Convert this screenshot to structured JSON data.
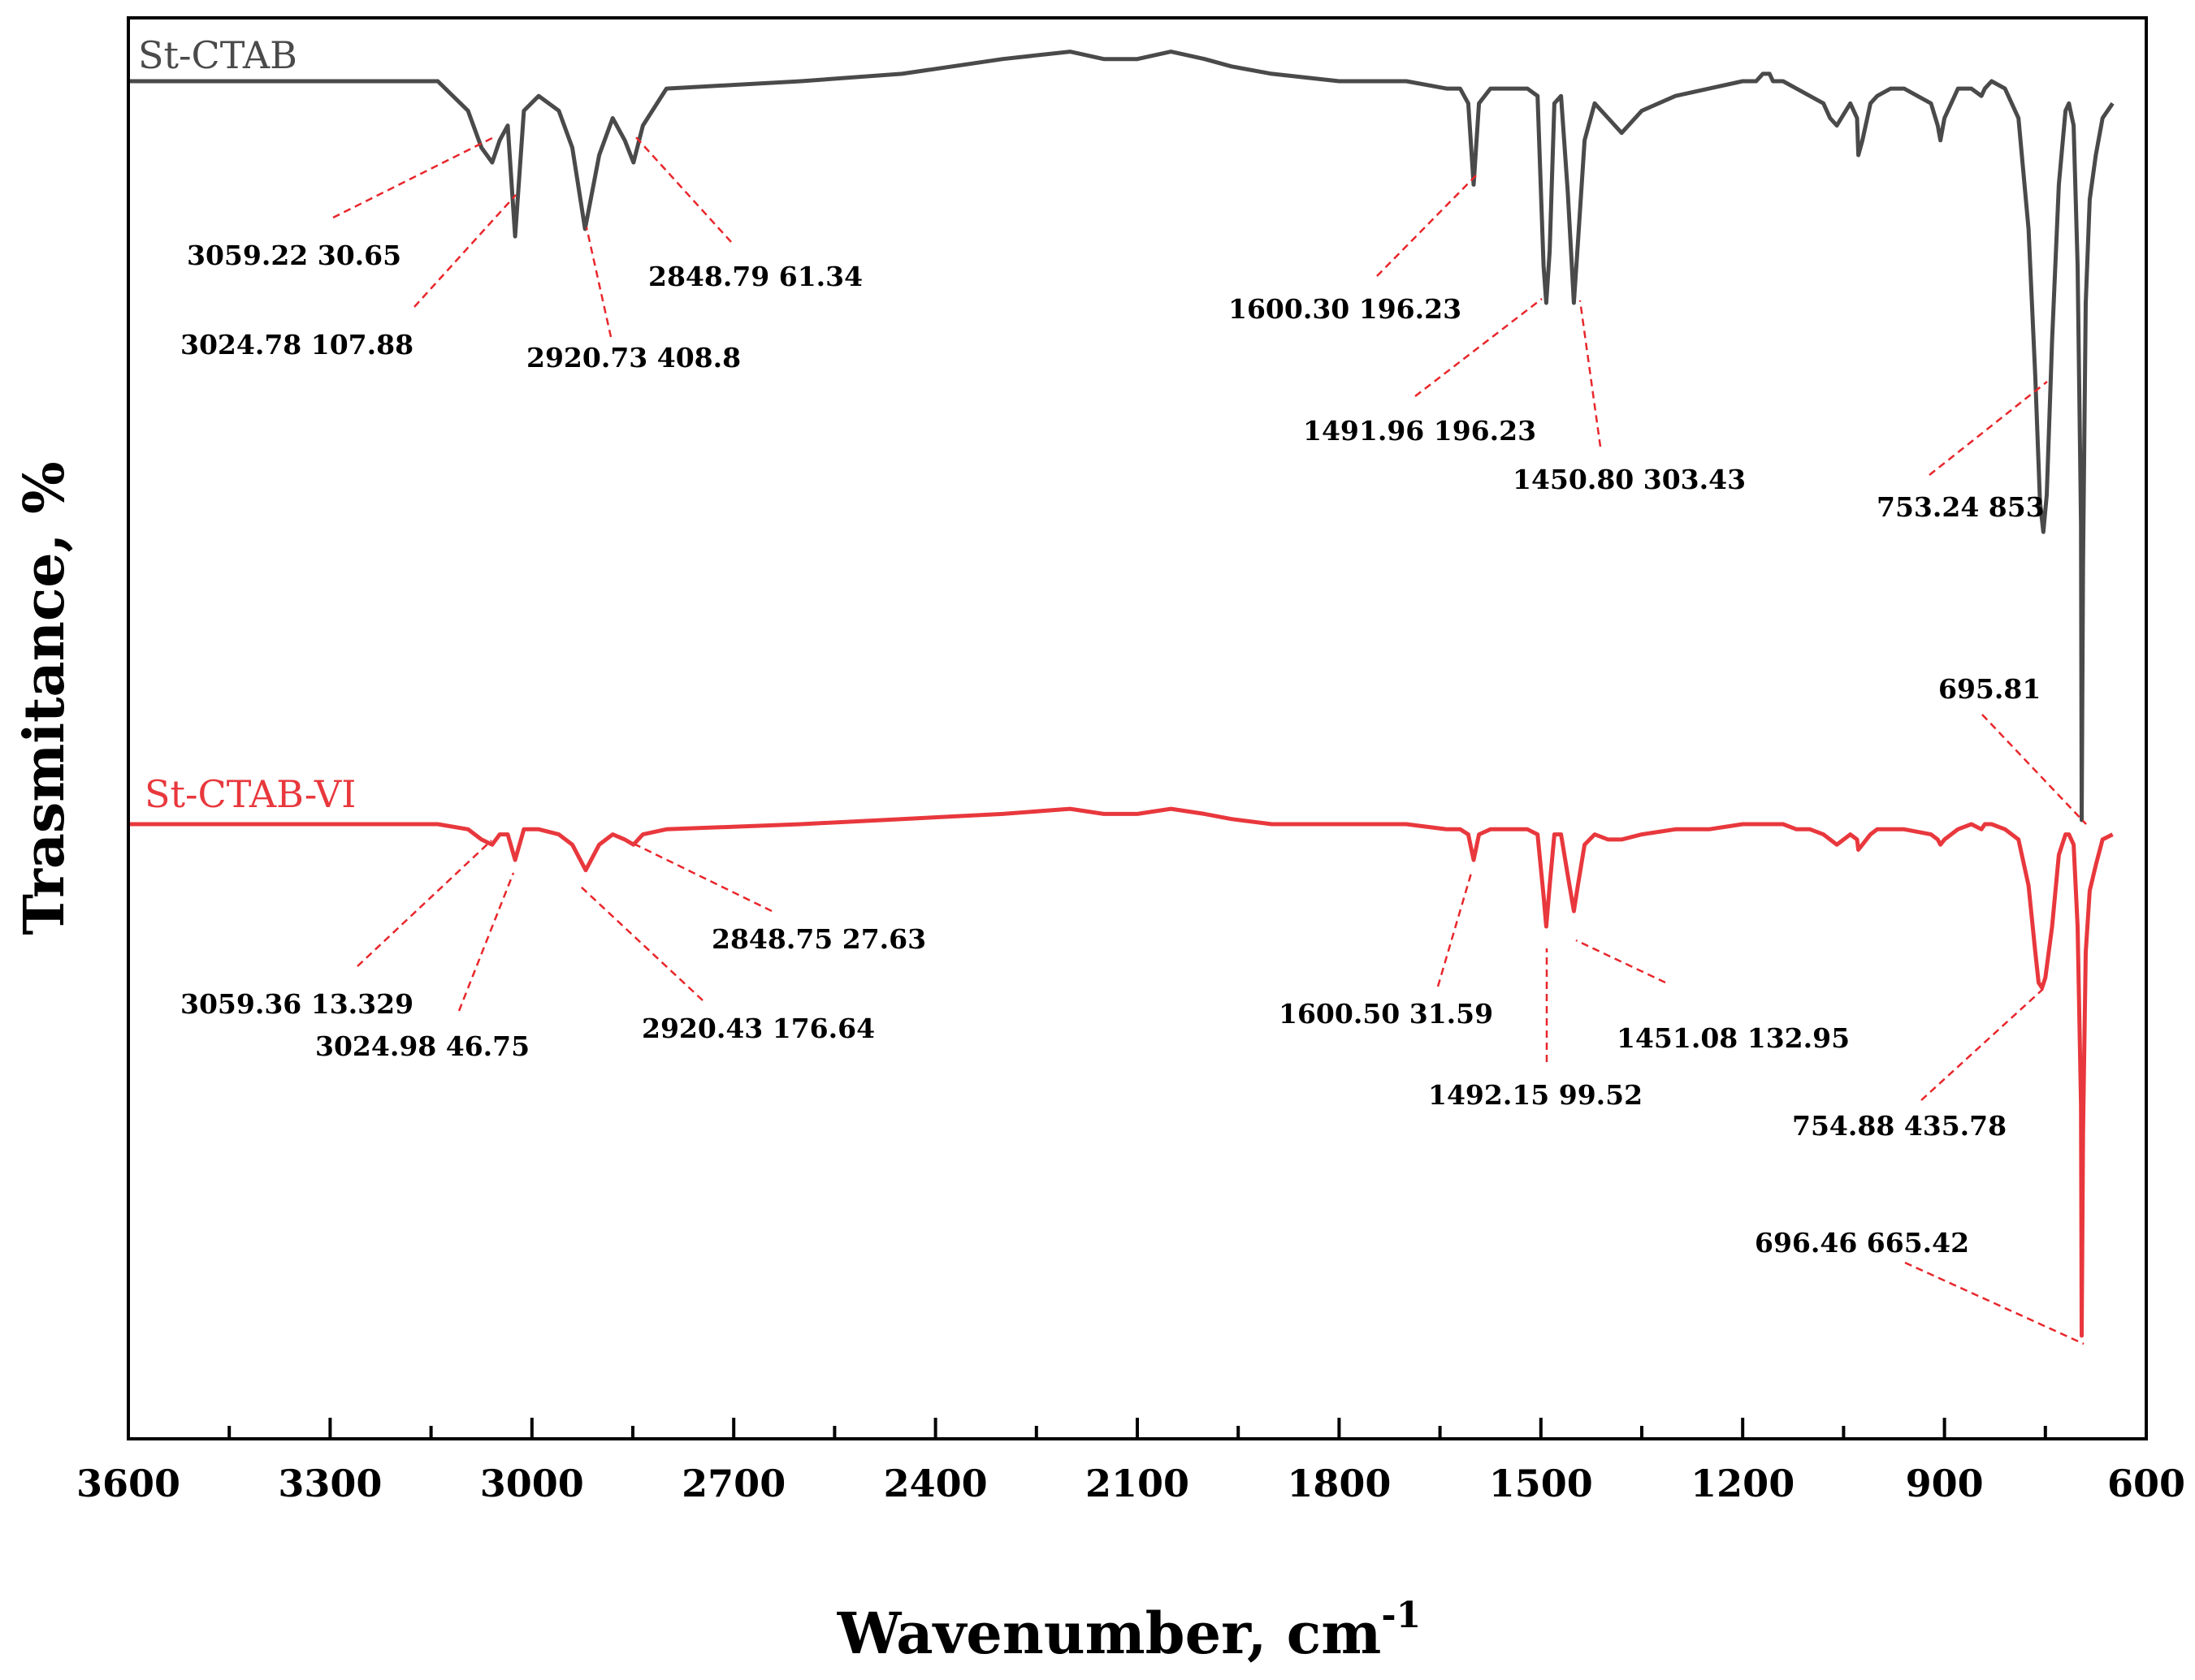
{
  "chart_data": {
    "type": "line",
    "xlabel": "Wavenumber, cm",
    "xlabel_superscript": "-1",
    "ylabel": "Trasmitance, %",
    "xlim": [
      3600,
      600
    ],
    "x_ticks": [
      "3600",
      "3300",
      "3000",
      "2700",
      "2400",
      "2100",
      "1800",
      "1500",
      "1200",
      "900",
      "600"
    ],
    "y_ticks": [],
    "series": [
      {
        "name": "St-CTAB",
        "color": "#4a4a4a",
        "baseline": 100,
        "x": [
          3600,
          3420,
          3220,
          3140,
          3095,
          3075,
          3059,
          3048,
          3036,
          3025,
          3012,
          2990,
          2960,
          2940,
          2921,
          2900,
          2880,
          2862,
          2849,
          2835,
          2800,
          2600,
          2450,
          2300,
          2200,
          2150,
          2100,
          2050,
          2000,
          1960,
          1900,
          1800,
          1700,
          1640,
          1620,
          1608,
          1600,
          1592,
          1575,
          1560,
          1540,
          1520,
          1505,
          1496,
          1492,
          1487,
          1480,
          1470,
          1460,
          1451,
          1445,
          1435,
          1420,
          1400,
          1380,
          1350,
          1300,
          1250,
          1200,
          1180,
          1170,
          1160,
          1155,
          1140,
          1120,
          1100,
          1080,
          1070,
          1060,
          1040,
          1030,
          1028,
          1022,
          1010,
          1000,
          980,
          960,
          920,
          910,
          906,
          900,
          880,
          860,
          845,
          840,
          830,
          810,
          790,
          775,
          765,
          758,
          753,
          748,
          740,
          730,
          720,
          715,
          708,
          702,
          697,
          696,
          694,
          690,
          684,
          675,
          665,
          650
        ],
        "y": [
          100,
          100,
          100,
          100,
          96,
          91,
          89,
          92,
          94,
          79,
          96,
          98,
          96,
          91,
          80,
          90,
          95,
          92,
          89,
          94,
          99,
          100,
          101,
          103,
          104,
          103,
          103,
          104,
          103,
          102,
          101,
          100,
          100,
          99,
          99,
          97,
          86,
          97,
          99,
          99,
          99,
          99,
          98,
          75,
          70,
          77,
          97,
          98,
          85,
          70,
          78,
          92,
          97,
          95,
          93,
          96,
          98,
          99,
          100,
          100,
          101,
          101,
          100,
          100,
          99,
          98,
          97,
          95,
          94,
          97,
          95,
          90,
          92,
          97,
          98,
          99,
          99,
          97,
          94,
          92,
          95,
          99,
          99,
          98,
          99,
          100,
          99,
          95,
          80,
          60,
          43,
          39,
          44,
          65,
          86,
          96,
          97,
          94,
          75,
          40,
          0,
          35,
          70,
          84,
          90,
          95,
          97
        ]
      },
      {
        "name": "St-CTAB-VI",
        "color": "#e8383d",
        "baseline": 100,
        "x": [
          3600,
          3420,
          3220,
          3140,
          3095,
          3075,
          3059,
          3048,
          3036,
          3025,
          3012,
          2990,
          2960,
          2940,
          2920,
          2900,
          2880,
          2862,
          2849,
          2835,
          2800,
          2600,
          2450,
          2300,
          2200,
          2150,
          2100,
          2050,
          2000,
          1960,
          1900,
          1800,
          1700,
          1640,
          1620,
          1608,
          1600,
          1592,
          1575,
          1560,
          1540,
          1520,
          1505,
          1496,
          1492,
          1487,
          1480,
          1470,
          1460,
          1451,
          1445,
          1435,
          1420,
          1400,
          1380,
          1350,
          1300,
          1250,
          1200,
          1180,
          1170,
          1160,
          1155,
          1140,
          1120,
          1100,
          1080,
          1070,
          1060,
          1040,
          1030,
          1028,
          1022,
          1010,
          1000,
          980,
          960,
          920,
          910,
          906,
          900,
          880,
          860,
          845,
          840,
          830,
          810,
          790,
          775,
          765,
          760,
          755,
          750,
          740,
          730,
          720,
          715,
          708,
          702,
          697,
          696,
          694,
          690,
          684,
          675,
          665,
          650
        ],
        "y": [
          100,
          100,
          100,
          100,
          99,
          97,
          96,
          98,
          98,
          93,
          99,
          99,
          98,
          96,
          91,
          96,
          98,
          97,
          96,
          98,
          99,
          100,
          101,
          102,
          103,
          102,
          102,
          103,
          102,
          101,
          100,
          100,
          100,
          99,
          99,
          98,
          93,
          98,
          99,
          99,
          99,
          99,
          98,
          86,
          80,
          88,
          98,
          98,
          90,
          83,
          88,
          96,
          98,
          97,
          97,
          98,
          99,
          99,
          100,
          100,
          100,
          100,
          100,
          100,
          99,
          99,
          98,
          97,
          96,
          98,
          97,
          95,
          96,
          98,
          99,
          99,
          99,
          98,
          97,
          96,
          97,
          99,
          100,
          99,
          100,
          100,
          99,
          97,
          88,
          75,
          69,
          68,
          70,
          80,
          94,
          98,
          98,
          96,
          80,
          45,
          0,
          40,
          75,
          87,
          92,
          97,
          98
        ]
      }
    ],
    "annotations": [
      {
        "series": "St-CTAB",
        "text": "3059.22 30.65"
      },
      {
        "series": "St-CTAB",
        "text": "3024.78 107.88"
      },
      {
        "series": "St-CTAB",
        "text": "2920.73 408.8"
      },
      {
        "series": "St-CTAB",
        "text": "2848.79 61.34"
      },
      {
        "series": "St-CTAB",
        "text": "1600.30 196.23"
      },
      {
        "series": "St-CTAB",
        "text": "1491.96 196.23"
      },
      {
        "series": "St-CTAB",
        "text": "1450.80 303.43"
      },
      {
        "series": "St-CTAB",
        "text": "753.24 853"
      },
      {
        "series": "St-CTAB",
        "text": "695.81"
      },
      {
        "series": "St-CTAB-VI",
        "text": "3059.36 13.329"
      },
      {
        "series": "St-CTAB-VI",
        "text": "3024.98 46.75"
      },
      {
        "series": "St-CTAB-VI",
        "text": "2920.43 176.64"
      },
      {
        "series": "St-CTAB-VI",
        "text": "2848.75 27.63"
      },
      {
        "series": "St-CTAB-VI",
        "text": "1600.50 31.59"
      },
      {
        "series": "St-CTAB-VI",
        "text": "1492.15 99.52"
      },
      {
        "series": "St-CTAB-VI",
        "text": "1451.08 132.95"
      },
      {
        "series": "St-CTAB-VI",
        "text": "754.88 435.78"
      },
      {
        "series": "St-CTAB-VI",
        "text": "696.46 665.42"
      }
    ]
  }
}
